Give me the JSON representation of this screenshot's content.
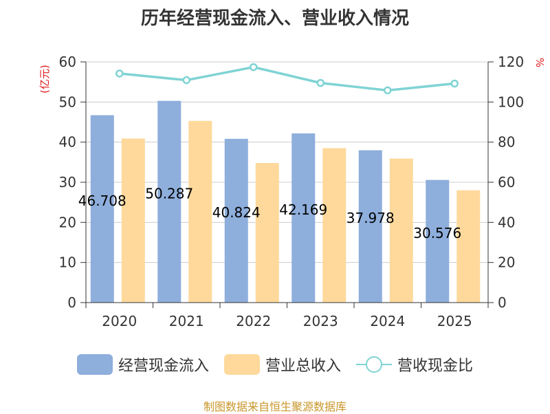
{
  "chart_data": {
    "type": "bar",
    "title": "历年经营现金流入、营业收入情况",
    "categories": [
      "2020",
      "2021",
      "2022",
      "2023",
      "2024",
      "2025"
    ],
    "series": [
      {
        "name": "经营现金流入",
        "type": "bar",
        "axis": "left",
        "values": [
          46.708,
          50.287,
          40.824,
          42.169,
          37.978,
          30.576
        ],
        "labels": [
          "46.708",
          "50.287",
          "40.824",
          "42.169",
          "37.978",
          "30.576"
        ],
        "color": "#8eaedc"
      },
      {
        "name": "营业总收入",
        "type": "bar",
        "axis": "left",
        "values": [
          40.9,
          45.3,
          34.8,
          38.5,
          35.9,
          28.0
        ],
        "color": "#fed99b"
      },
      {
        "name": "营收现金比",
        "type": "line",
        "axis": "right",
        "values": [
          114.2,
          110.9,
          117.4,
          109.5,
          105.8,
          109.2
        ],
        "color": "#7fd3d4"
      }
    ],
    "y_left": {
      "unit": "(亿元)",
      "ylim": [
        0,
        60
      ],
      "ticks": [
        "0",
        "10",
        "20",
        "30",
        "40",
        "50",
        "60"
      ]
    },
    "y_right": {
      "unit": "%",
      "ylim": [
        0,
        120
      ],
      "ticks": [
        "0",
        "20",
        "40",
        "60",
        "80",
        "100",
        "120"
      ]
    },
    "grid": true,
    "legend_position": "bottom",
    "unit_color": "#e0181b"
  },
  "source": "制图数据来自恒生聚源数据库"
}
